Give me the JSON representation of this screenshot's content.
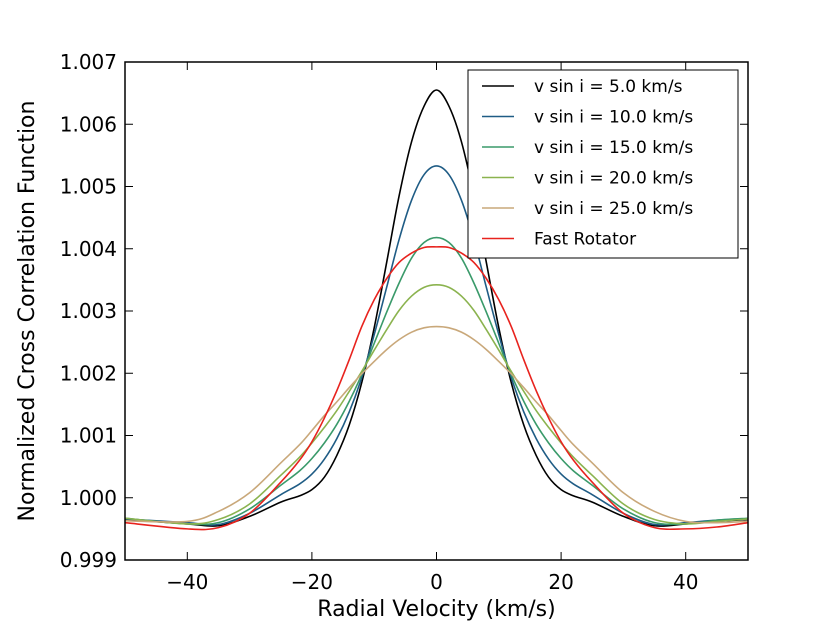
{
  "chart_data": {
    "type": "line",
    "title": "",
    "xlabel": "Radial Velocity (km/s)",
    "ylabel": "Normalized Cross Correlation Function",
    "xlim": [
      -50,
      50
    ],
    "ylim": [
      0.999,
      1.007
    ],
    "xticks": [
      -40,
      -20,
      0,
      20,
      40
    ],
    "xtick_labels": [
      "−40",
      "−20",
      "0",
      "20",
      "40"
    ],
    "yticks": [
      0.999,
      1.0,
      1.001,
      1.002,
      1.003,
      1.004,
      1.005,
      1.006,
      1.007
    ],
    "ytick_labels": [
      "0.999",
      "1.000",
      "1.001",
      "1.002",
      "1.003",
      "1.004",
      "1.005",
      "1.006",
      "1.007"
    ],
    "grid": false,
    "legend_position": "top-right",
    "series": [
      {
        "name": "v sin i = 5.0 km/s",
        "color": "#000000",
        "x": [
          -50,
          -40,
          -35,
          -30,
          -25,
          -22,
          -20,
          -18,
          -16,
          -14,
          -12,
          -10,
          -8,
          -6,
          -4,
          -2,
          0,
          2,
          4,
          6,
          8,
          10,
          12,
          14,
          16,
          18,
          20,
          22,
          25,
          30,
          35,
          40,
          45,
          50
        ],
        "y": [
          0.99965,
          0.99958,
          0.99955,
          0.9997,
          0.99993,
          1.00003,
          1.00013,
          1.00033,
          1.00068,
          1.00117,
          1.00185,
          1.00273,
          1.00378,
          1.00485,
          1.00572,
          1.00629,
          1.00655,
          1.00629,
          1.00572,
          1.00485,
          1.00378,
          1.00273,
          1.00185,
          1.00117,
          1.00068,
          1.00033,
          1.00013,
          1.00003,
          0.99993,
          0.9997,
          0.99955,
          0.99958,
          0.99962,
          0.99965
        ]
      },
      {
        "name": "v sin i = 10.0 km/s",
        "color": "#1f5c85",
        "x": [
          -50,
          -40,
          -35,
          -30,
          -25,
          -22,
          -20,
          -18,
          -16,
          -14,
          -12,
          -10,
          -8,
          -6,
          -4,
          -2,
          0,
          2,
          4,
          6,
          8,
          10,
          12,
          14,
          16,
          18,
          20,
          22,
          25,
          30,
          35,
          40,
          45,
          50
        ],
        "y": [
          0.99966,
          0.9996,
          0.99957,
          0.99975,
          1.00005,
          1.00022,
          1.00038,
          1.00062,
          1.00095,
          1.00138,
          1.00193,
          1.00262,
          1.00338,
          1.00415,
          1.00478,
          1.00519,
          1.00533,
          1.00519,
          1.00478,
          1.00415,
          1.00338,
          1.00262,
          1.00193,
          1.00138,
          1.00095,
          1.00062,
          1.00038,
          1.00022,
          1.00005,
          0.99975,
          0.99957,
          0.9996,
          0.99964,
          0.99966
        ]
      },
      {
        "name": "v sin i = 15.0 km/s",
        "color": "#3a9a6a",
        "x": [
          -50,
          -40,
          -35,
          -30,
          -25,
          -22,
          -20,
          -18,
          -16,
          -14,
          -12,
          -10,
          -8,
          -6,
          -4,
          -2,
          0,
          2,
          4,
          6,
          8,
          10,
          12,
          14,
          16,
          18,
          20,
          22,
          25,
          30,
          35,
          40,
          45,
          50
        ],
        "y": [
          0.99967,
          0.99958,
          0.9996,
          0.99982,
          1.0002,
          1.00043,
          1.00063,
          1.00088,
          1.00118,
          1.00155,
          1.00198,
          1.00248,
          1.00298,
          1.00345,
          1.00385,
          1.0041,
          1.00418,
          1.0041,
          1.00385,
          1.00345,
          1.00298,
          1.00248,
          1.00198,
          1.00155,
          1.00118,
          1.00088,
          1.00063,
          1.00043,
          1.0002,
          0.99982,
          0.9996,
          0.99958,
          0.99964,
          0.99967
        ]
      },
      {
        "name": "v sin i = 20.0 km/s",
        "color": "#8bb34f",
        "x": [
          -50,
          -40,
          -35,
          -30,
          -25,
          -22,
          -20,
          -18,
          -16,
          -14,
          -12,
          -10,
          -8,
          -6,
          -4,
          -2,
          0,
          2,
          4,
          6,
          8,
          10,
          12,
          14,
          16,
          18,
          20,
          22,
          25,
          30,
          35,
          40,
          45,
          50
        ],
        "y": [
          0.99967,
          0.99958,
          0.99965,
          0.9999,
          1.00036,
          1.00065,
          1.00088,
          1.00113,
          1.0014,
          1.00171,
          1.00203,
          1.00237,
          1.0027,
          1.00301,
          1.00324,
          1.00338,
          1.00342,
          1.00338,
          1.00324,
          1.00301,
          1.0027,
          1.00237,
          1.00203,
          1.00171,
          1.0014,
          1.00113,
          1.00088,
          1.00065,
          1.00036,
          0.9999,
          0.99965,
          0.99958,
          0.99962,
          0.99966
        ]
      },
      {
        "name": "v sin i = 25.0 km/s",
        "color": "#c9a87a",
        "x": [
          -50,
          -40,
          -35,
          -30,
          -25,
          -22,
          -20,
          -18,
          -16,
          -14,
          -12,
          -10,
          -8,
          -6,
          -4,
          -2,
          0,
          2,
          4,
          6,
          8,
          10,
          12,
          14,
          16,
          18,
          20,
          22,
          25,
          30,
          35,
          40,
          45,
          50
        ],
        "y": [
          0.99963,
          0.99962,
          0.99978,
          1.00008,
          1.00056,
          1.00085,
          1.00108,
          1.00132,
          1.00154,
          1.00177,
          1.00199,
          1.00219,
          1.00238,
          1.00254,
          1.00266,
          1.00273,
          1.00275,
          1.00273,
          1.00266,
          1.00254,
          1.00238,
          1.00219,
          1.00199,
          1.00177,
          1.00154,
          1.00132,
          1.00108,
          1.00085,
          1.00056,
          1.00008,
          0.99978,
          0.99962,
          0.9996,
          0.99962
        ]
      },
      {
        "name": "Fast Rotator",
        "color": "#e8231e",
        "x": [
          -50,
          -40,
          -35,
          -30,
          -25,
          -22,
          -20,
          -18,
          -16,
          -14,
          -12,
          -10,
          -8,
          -6,
          -4,
          -2,
          0,
          2,
          4,
          6,
          8,
          10,
          12,
          14,
          16,
          18,
          20,
          22,
          25,
          30,
          35,
          40,
          45,
          50
        ],
        "y": [
          0.9996,
          0.9995,
          0.99952,
          0.99975,
          1.00025,
          1.0006,
          1.0009,
          1.00128,
          1.00172,
          1.00222,
          1.00275,
          1.00318,
          1.00352,
          1.00378,
          1.00393,
          1.00402,
          1.00403,
          1.00402,
          1.00393,
          1.00378,
          1.00352,
          1.00318,
          1.00275,
          1.00222,
          1.00172,
          1.00128,
          1.0009,
          1.0006,
          1.00025,
          0.99975,
          0.99952,
          0.9995,
          0.99953,
          0.9996
        ]
      }
    ]
  }
}
